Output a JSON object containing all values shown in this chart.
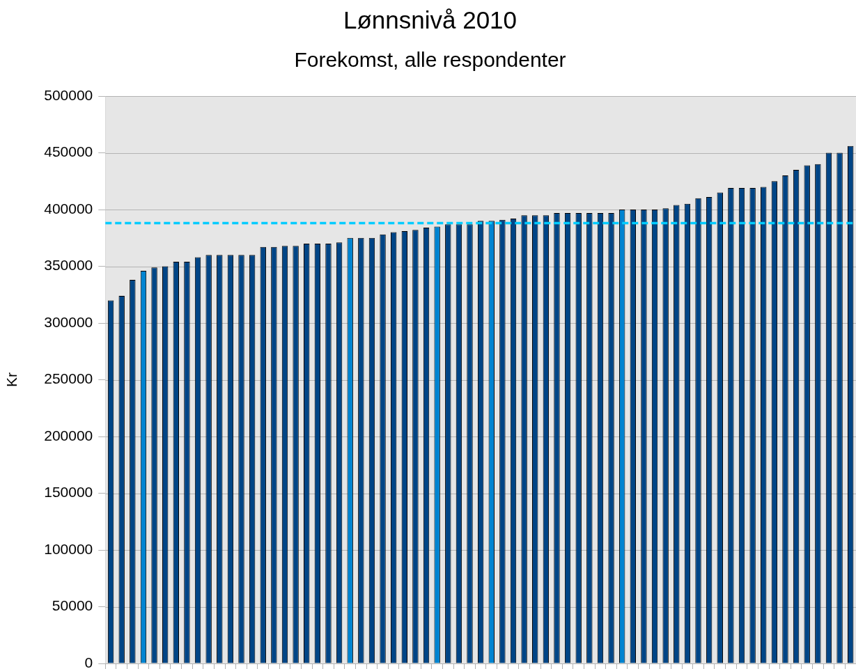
{
  "chart_data": {
    "type": "bar",
    "title": "Lønnsnivå 2010",
    "subtitle": "Forekomst, alle respondenter",
    "ylabel": "Kr",
    "categories": [
      null,
      null,
      null,
      null,
      null,
      null,
      null,
      null,
      null,
      null,
      null,
      null,
      null,
      null,
      null,
      null,
      null,
      null,
      null,
      null,
      null,
      null,
      null,
      null,
      null,
      null,
      null,
      null,
      null,
      null,
      null,
      null,
      null,
      null,
      null,
      null,
      null,
      null,
      null,
      null,
      null,
      null,
      null,
      null,
      null,
      null,
      null,
      null,
      null,
      null,
      null,
      null,
      null,
      null,
      null,
      null,
      null,
      null,
      null,
      null,
      null,
      null,
      null,
      null,
      null,
      null,
      null,
      null,
      null
    ],
    "values": [
      320000,
      324000,
      338000,
      346000,
      349000,
      350000,
      354000,
      354000,
      358000,
      360000,
      360000,
      360000,
      360000,
      360000,
      367000,
      367000,
      368000,
      368000,
      370000,
      370000,
      370000,
      371000,
      375000,
      375000,
      375000,
      378000,
      380000,
      381000,
      382000,
      384000,
      385000,
      387000,
      387000,
      387000,
      390000,
      390000,
      391000,
      392000,
      395000,
      395000,
      395000,
      397000,
      397000,
      397000,
      397000,
      397000,
      397000,
      400000,
      400000,
      400000,
      400000,
      401000,
      404000,
      405000,
      410000,
      411000,
      415000,
      419000,
      419000,
      419000,
      420000,
      425000,
      430000,
      435000,
      439000,
      440000,
      450000,
      450000,
      456000
    ],
    "colors": [
      "#004586",
      "#004586",
      "#004586",
      "#0084d1",
      "#004586",
      "#004586",
      "#004586",
      "#004586",
      "#004586",
      "#004586",
      "#004586",
      "#004586",
      "#004586",
      "#004586",
      "#004586",
      "#004586",
      "#004586",
      "#004586",
      "#004586",
      "#004586",
      "#004586",
      "#004586",
      "#0084d1",
      "#004586",
      "#004586",
      "#004586",
      "#004586",
      "#004586",
      "#004586",
      "#004586",
      "#0084d1",
      "#004586",
      "#004586",
      "#004586",
      "#004586",
      "#0084d1",
      "#004586",
      "#004586",
      "#004586",
      "#004586",
      "#004586",
      "#004586",
      "#004586",
      "#004586",
      "#004586",
      "#004586",
      "#004586",
      "#0084d1",
      "#004586",
      "#004586",
      "#004586",
      "#004586",
      "#004586",
      "#004586",
      "#004586",
      "#004586",
      "#004586",
      "#004586",
      "#004586",
      "#004586",
      "#004586",
      "#004586",
      "#004586",
      "#004586",
      "#004586",
      "#004586",
      "#004586",
      "#004586",
      "#004586"
    ],
    "ylim": [
      0,
      500000
    ],
    "yticks": [
      0,
      50000,
      100000,
      150000,
      200000,
      250000,
      300000,
      350000,
      400000,
      450000,
      500000
    ],
    "grid": "y",
    "tick_labels": "y",
    "ref_lines": [
      {
        "axis": "y",
        "value": 388000,
        "color": "#00ccff",
        "line_style": "dashed"
      }
    ]
  }
}
